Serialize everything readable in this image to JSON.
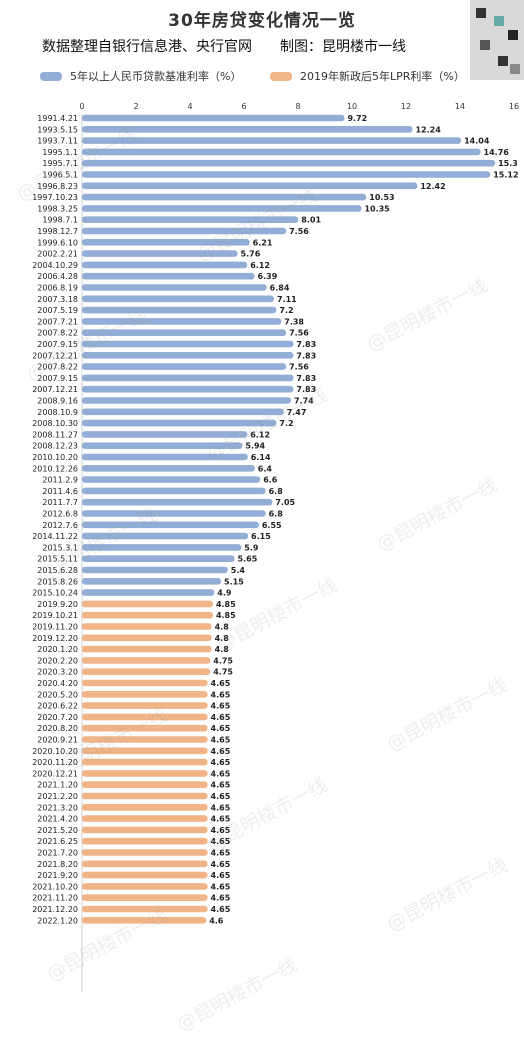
{
  "title": "30年房贷变化情况一览",
  "subtitle": "数据整理自银行信息港、央行官网　　制图：昆明楼市一线",
  "watermark": "@昆明楼市一线",
  "colors": {
    "series1": "#92add6",
    "series2": "#f0b487"
  },
  "chart_data": {
    "type": "bar",
    "orientation": "horizontal",
    "xlim": [
      0,
      16
    ],
    "xticks": [
      0,
      2,
      4,
      6,
      8,
      10,
      12,
      14,
      16
    ],
    "legend_position": "top",
    "series": [
      {
        "name": "5年以上人民币贷款基准利率（%）",
        "color": "#92add6",
        "categories": [
          "1991.4.21",
          "1993.5.15",
          "1993.7.11",
          "1995.1.1",
          "1995.7.1",
          "1996.5.1",
          "1996.8.23",
          "1997.10.23",
          "1998.3.25",
          "1998.7.1",
          "1998.12.7",
          "1999.6.10",
          "2002.2.21",
          "2004.10.29",
          "2006.4.28",
          "2006.8.19",
          "2007.3.18",
          "2007.5.19",
          "2007.7.21",
          "2007.8.22",
          "2007.9.15",
          "2007.12.21",
          "2007.8.22",
          "2007.9.15",
          "2007.12.21",
          "2008.9.16",
          "2008.10.9",
          "2008.10.30",
          "2008.11.27",
          "2008.12.23",
          "2010.10.20",
          "2010.12.26",
          "2011.2.9",
          "2011.4.6",
          "2011.7.7",
          "2012.6.8",
          "2012.7.6",
          "2014.11.22",
          "2015.3.1",
          "2015.5.11",
          "2015.6.28",
          "2015.8.26",
          "2015.10.24"
        ],
        "values": [
          9.72,
          12.24,
          14.04,
          14.76,
          15.3,
          15.12,
          12.42,
          10.53,
          10.35,
          8.01,
          7.56,
          6.21,
          5.76,
          6.12,
          6.39,
          6.84,
          7.11,
          7.2,
          7.38,
          7.56,
          7.83,
          7.83,
          7.56,
          7.83,
          7.83,
          7.74,
          7.47,
          7.2,
          6.12,
          5.94,
          6.14,
          6.4,
          6.6,
          6.8,
          7.05,
          6.8,
          6.55,
          6.15,
          5.9,
          5.65,
          5.4,
          5.15,
          4.9
        ]
      },
      {
        "name": "2019年新政后5年LPR利率（%）",
        "color": "#f0b487",
        "categories": [
          "2019.9.20",
          "2019.10.21",
          "2019.11.20",
          "2019.12.20",
          "2020.1.20",
          "2020.2.20",
          "2020.3.20",
          "2020.4.20",
          "2020.5.20",
          "2020.6.22",
          "2020.7.20",
          "2020.8.20",
          "2020.9.21",
          "2020.10.20",
          "2020.11.20",
          "2020.12.21",
          "2021.1.20",
          "2021.2.20",
          "2021.3.20",
          "2021.4.20",
          "2021.5.20",
          "2021.6.25",
          "2021.7.20",
          "2021.8.20",
          "2021.9.20",
          "2021.10.20",
          "2021.11.20",
          "2021.12.20",
          "2022.1.20"
        ],
        "values": [
          4.85,
          4.85,
          4.8,
          4.8,
          4.8,
          4.75,
          4.75,
          4.65,
          4.65,
          4.65,
          4.65,
          4.65,
          4.65,
          4.65,
          4.65,
          4.65,
          4.65,
          4.65,
          4.65,
          4.65,
          4.65,
          4.65,
          4.65,
          4.65,
          4.65,
          4.65,
          4.65,
          4.65,
          4.6
        ]
      }
    ]
  }
}
